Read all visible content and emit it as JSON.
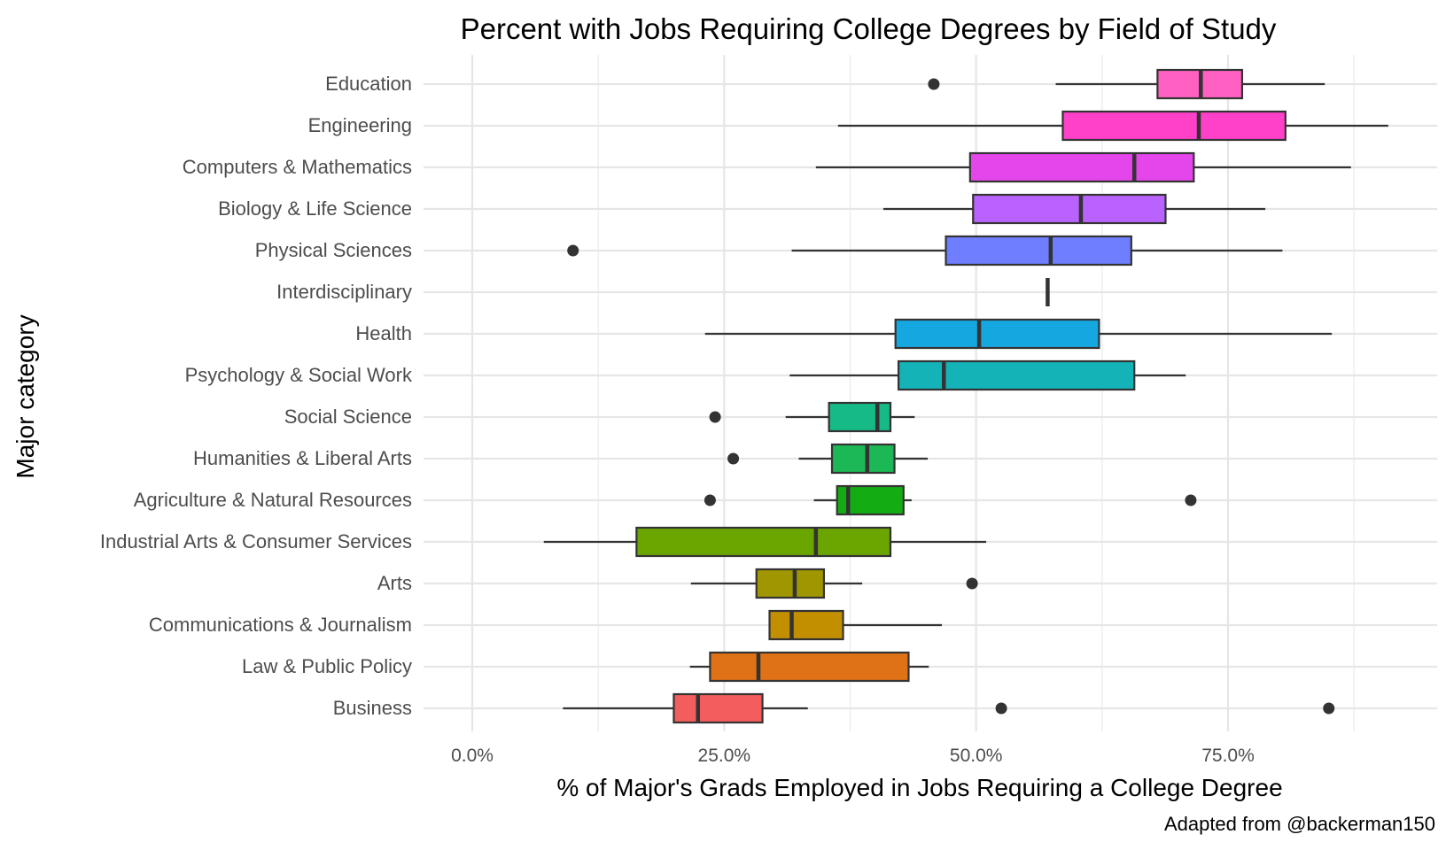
{
  "chart_data": {
    "type": "boxplot",
    "title": "Percent with Jobs Requiring College Degrees by Field of Study",
    "xlabel": "% of Major's Grads Employed in Jobs Requiring a College Degree",
    "ylabel": "Major category",
    "caption": "Adapted from @backerman150",
    "xlim": [
      -0.05,
      0.95
    ],
    "x_ticks": [
      0.0,
      0.25,
      0.5,
      0.75
    ],
    "x_tick_labels": [
      "0.0%",
      "25.0%",
      "50.0%",
      "75.0%"
    ],
    "grid": true,
    "legend": "none",
    "categories": [
      "Education",
      "Engineering",
      "Computers & Mathematics",
      "Biology & Life Science",
      "Physical Sciences",
      "Interdisciplinary",
      "Health",
      "Psychology & Social Work",
      "Social Science",
      "Humanities & Liberal Arts",
      "Agriculture & Natural Resources",
      "Industrial Arts & Consumer Services",
      "Arts",
      "Communications & Journalism",
      "Law & Public Policy",
      "Business"
    ],
    "boxes": [
      {
        "category": "Education",
        "whisker_low": 0.579,
        "q1": 0.68,
        "median": 0.723,
        "q3": 0.764,
        "whisker_high": 0.846,
        "outliers": [
          0.458
        ],
        "color": "#FF61C3"
      },
      {
        "category": "Engineering",
        "whisker_low": 0.363,
        "q1": 0.586,
        "median": 0.721,
        "q3": 0.807,
        "whisker_high": 0.909,
        "outliers": [],
        "color": "#FF40C9"
      },
      {
        "category": "Computers & Mathematics",
        "whisker_low": 0.341,
        "q1": 0.494,
        "median": 0.657,
        "q3": 0.716,
        "whisker_high": 0.872,
        "outliers": [],
        "color": "#E446EB"
      },
      {
        "category": "Biology & Life Science",
        "whisker_low": 0.408,
        "q1": 0.497,
        "median": 0.604,
        "q3": 0.688,
        "whisker_high": 0.787,
        "outliers": [],
        "color": "#B962FF"
      },
      {
        "category": "Physical Sciences",
        "whisker_low": 0.317,
        "q1": 0.47,
        "median": 0.574,
        "q3": 0.654,
        "whisker_high": 0.804,
        "outliers": [
          0.1
        ],
        "color": "#6F7EFF"
      },
      {
        "category": "Interdisciplinary",
        "whisker_low": 0.571,
        "q1": 0.571,
        "median": 0.571,
        "q3": 0.571,
        "whisker_high": 0.571,
        "outliers": [],
        "color": "#00B4EF"
      },
      {
        "category": "Health",
        "whisker_low": 0.231,
        "q1": 0.42,
        "median": 0.503,
        "q3": 0.622,
        "whisker_high": 0.853,
        "outliers": [],
        "color": "#14A7E0"
      },
      {
        "category": "Psychology & Social Work",
        "whisker_low": 0.315,
        "q1": 0.423,
        "median": 0.468,
        "q3": 0.657,
        "whisker_high": 0.708,
        "outliers": [],
        "color": "#13B3B8"
      },
      {
        "category": "Social Science",
        "whisker_low": 0.311,
        "q1": 0.354,
        "median": 0.402,
        "q3": 0.415,
        "whisker_high": 0.439,
        "outliers": [
          0.241
        ],
        "color": "#15BA86"
      },
      {
        "category": "Humanities & Liberal Arts",
        "whisker_low": 0.324,
        "q1": 0.357,
        "median": 0.392,
        "q3": 0.419,
        "whisker_high": 0.452,
        "outliers": [
          0.259
        ],
        "color": "#1DB856"
      },
      {
        "category": "Agriculture & Natural Resources",
        "whisker_low": 0.339,
        "q1": 0.362,
        "median": 0.373,
        "q3": 0.428,
        "whisker_high": 0.436,
        "outliers": [
          0.236,
          0.713
        ],
        "color": "#13AD13"
      },
      {
        "category": "Industrial Arts & Consumer Services",
        "whisker_low": 0.071,
        "q1": 0.163,
        "median": 0.341,
        "q3": 0.415,
        "whisker_high": 0.51,
        "outliers": [],
        "color": "#6BA500"
      },
      {
        "category": "Arts",
        "whisker_low": 0.217,
        "q1": 0.282,
        "median": 0.32,
        "q3": 0.349,
        "whisker_high": 0.387,
        "outliers": [
          0.496
        ],
        "color": "#A09600"
      },
      {
        "category": "Communications & Journalism",
        "whisker_low": 0.295,
        "q1": 0.295,
        "median": 0.317,
        "q3": 0.368,
        "whisker_high": 0.466,
        "outliers": [],
        "color": "#C18F00"
      },
      {
        "category": "Law & Public Policy",
        "whisker_low": 0.216,
        "q1": 0.236,
        "median": 0.284,
        "q3": 0.433,
        "whisker_high": 0.453,
        "outliers": [],
        "color": "#DF7116"
      },
      {
        "category": "Business",
        "whisker_low": 0.09,
        "q1": 0.2,
        "median": 0.224,
        "q3": 0.288,
        "whisker_high": 0.333,
        "outliers": [
          0.525,
          0.85
        ],
        "color": "#F35D5D"
      }
    ]
  }
}
